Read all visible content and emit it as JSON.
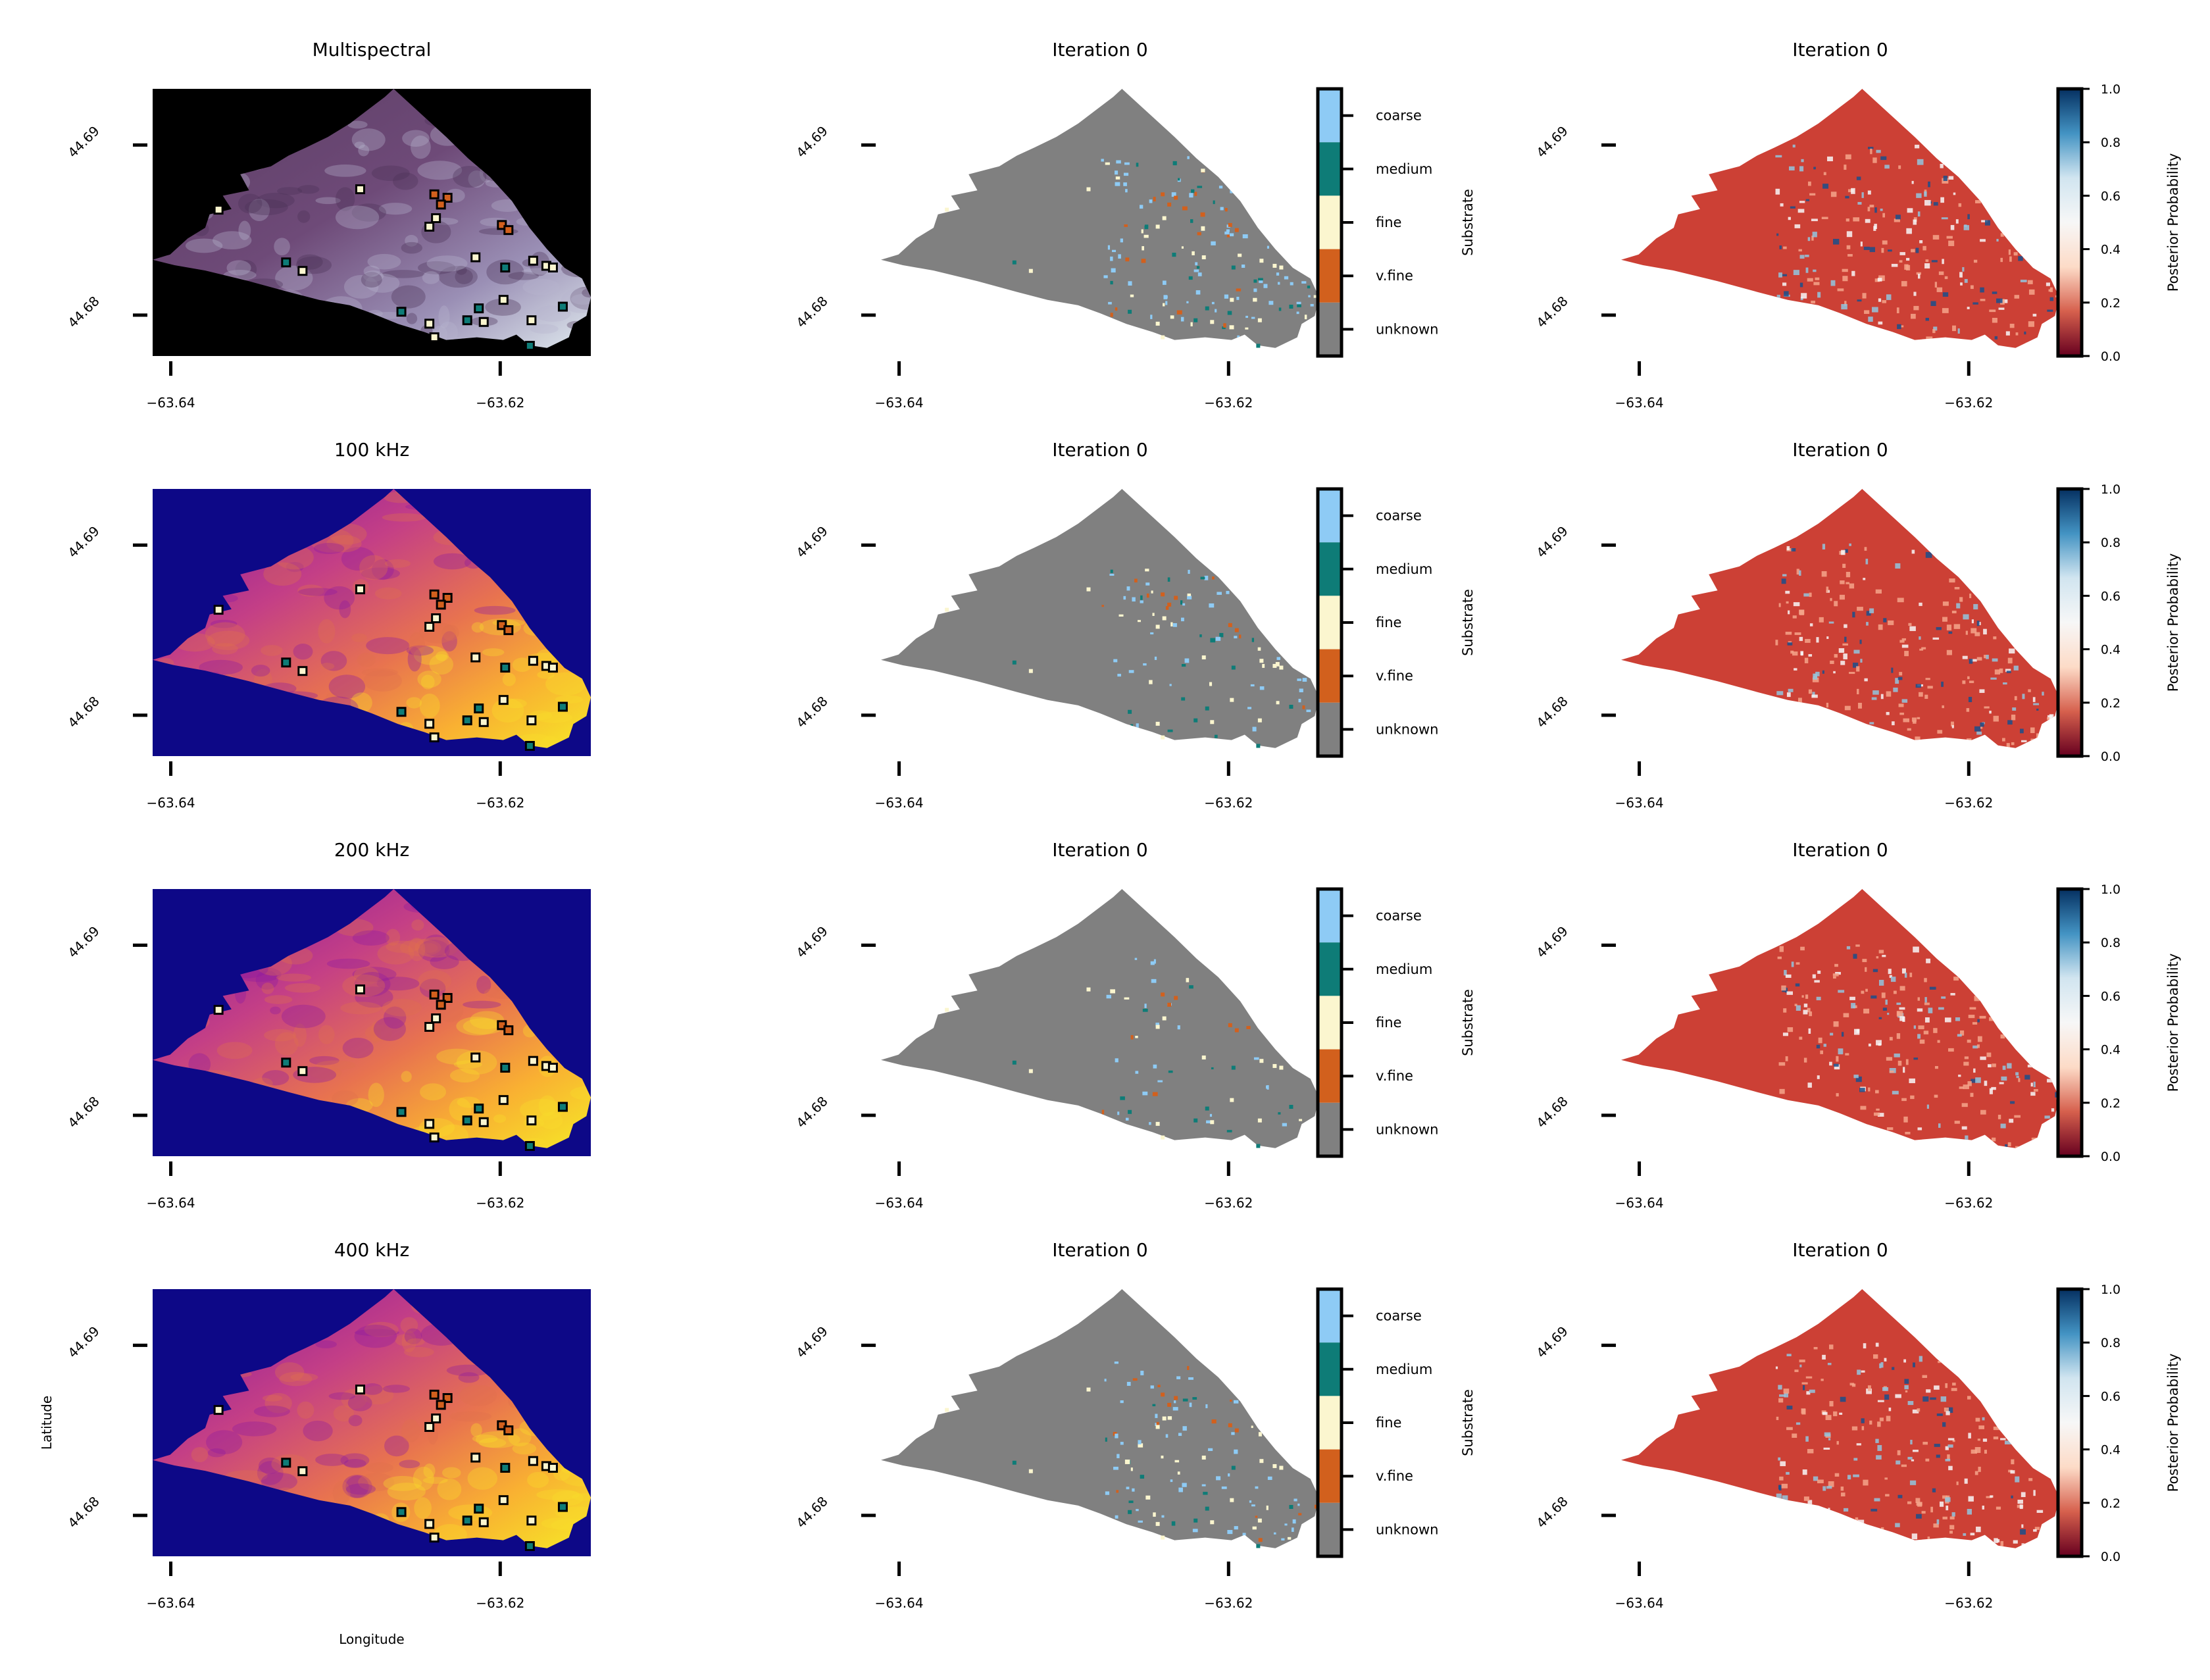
{
  "figure": {
    "ylabel": "Latitude",
    "xlabel": "Longitude"
  },
  "axes": {
    "x_ticks": [
      "−63.64",
      "−63.62"
    ],
    "y_ticks": [
      "44.69",
      "44.68"
    ]
  },
  "columns": [
    {
      "kind": "raster"
    },
    {
      "kind": "classes",
      "colorbar_label": "Substrate"
    },
    {
      "kind": "probability",
      "colorbar_label": "Posterior Probability"
    }
  ],
  "rows": [
    {
      "col1_title": "Multispectral",
      "col1_palette": "multispectral",
      "col2_title": "Iteration 0",
      "col3_title": "Iteration 0"
    },
    {
      "col1_title": "100 kHz",
      "col1_palette": "plasma",
      "col2_title": "Iteration 0",
      "col3_title": "Iteration 0"
    },
    {
      "col1_title": "200 kHz",
      "col1_palette": "plasma",
      "col2_title": "Iteration 0",
      "col3_title": "Iteration 0"
    },
    {
      "col1_title": "400 kHz",
      "col1_palette": "plasma",
      "col2_title": "Iteration 0",
      "col3_title": "Iteration 0"
    }
  ],
  "substrate_classes": [
    {
      "label": "coarse",
      "color": "#8ecbf5"
    },
    {
      "label": "medium",
      "color": "#0e7c77"
    },
    {
      "label": "fine",
      "color": "#fbf6cf"
    },
    {
      "label": "v.fine",
      "color": "#d2601d"
    },
    {
      "label": "unknown",
      "color": "#808080"
    }
  ],
  "probability_ticks": [
    "1.0",
    "0.8",
    "0.6",
    "0.4",
    "0.2",
    "0.0"
  ],
  "probability_colormap": [
    "#67001f",
    "#d6604d",
    "#fddbc7",
    "#f7f7f7",
    "#d1e5f0",
    "#4393c3",
    "#053061"
  ],
  "colors": {
    "unknown_gray": "#808080",
    "low_probability": "#cc4035",
    "plasma_background": "#0d0887",
    "raster_background": "#000000"
  },
  "sample_points": [
    {
      "lon": -63.6371,
      "lat": 44.6862,
      "cls": "fine"
    },
    {
      "lon": -63.6285,
      "lat": 44.6874,
      "cls": "fine"
    },
    {
      "lon": -63.6239,
      "lat": 44.6857,
      "cls": "fine"
    },
    {
      "lon": -63.6243,
      "lat": 44.6852,
      "cls": "fine"
    },
    {
      "lon": -63.6232,
      "lat": 44.6869,
      "cls": "v.fine"
    },
    {
      "lon": -63.624,
      "lat": 44.6871,
      "cls": "v.fine"
    },
    {
      "lon": -63.6236,
      "lat": 44.6865,
      "cls": "v.fine"
    },
    {
      "lon": -63.6199,
      "lat": 44.6853,
      "cls": "v.fine"
    },
    {
      "lon": -63.6195,
      "lat": 44.685,
      "cls": "v.fine"
    },
    {
      "lon": -63.633,
      "lat": 44.6831,
      "cls": "medium"
    },
    {
      "lon": -63.632,
      "lat": 44.6826,
      "cls": "fine"
    },
    {
      "lon": -63.6215,
      "lat": 44.6834,
      "cls": "fine"
    },
    {
      "lon": -63.6197,
      "lat": 44.6828,
      "cls": "medium"
    },
    {
      "lon": -63.618,
      "lat": 44.6832,
      "cls": "fine"
    },
    {
      "lon": -63.6172,
      "lat": 44.6829,
      "cls": "fine"
    },
    {
      "lon": -63.6168,
      "lat": 44.6828,
      "cls": "fine"
    },
    {
      "lon": -63.626,
      "lat": 44.6802,
      "cls": "medium"
    },
    {
      "lon": -63.6243,
      "lat": 44.6795,
      "cls": "fine"
    },
    {
      "lon": -63.624,
      "lat": 44.6787,
      "cls": "fine"
    },
    {
      "lon": -63.622,
      "lat": 44.6797,
      "cls": "medium"
    },
    {
      "lon": -63.6213,
      "lat": 44.6804,
      "cls": "medium"
    },
    {
      "lon": -63.621,
      "lat": 44.6796,
      "cls": "fine"
    },
    {
      "lon": -63.6198,
      "lat": 44.6809,
      "cls": "fine"
    },
    {
      "lon": -63.6181,
      "lat": 44.6797,
      "cls": "fine"
    },
    {
      "lon": -63.6162,
      "lat": 44.6805,
      "cls": "medium"
    },
    {
      "lon": -63.6182,
      "lat": 44.6782,
      "cls": "medium"
    }
  ]
}
